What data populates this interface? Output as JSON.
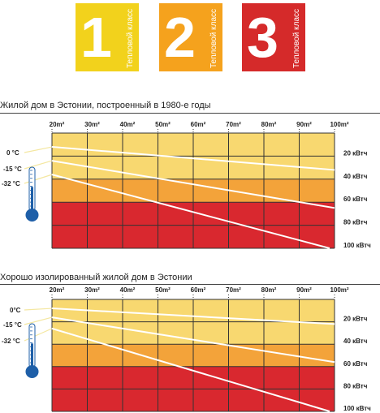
{
  "classes": [
    {
      "number": "1",
      "label": "Тепловой класс",
      "color": "#f2d21c"
    },
    {
      "number": "2",
      "label": "Тепловой класс",
      "color": "#f5a21d"
    },
    {
      "number": "3",
      "label": "Тепловой класс",
      "color": "#d52a2a"
    }
  ],
  "charts": [
    {
      "title": "Жилой дом в Эстонии, построенный в 1980-е годы",
      "chart_data": {
        "type": "diagram",
        "areas": [
          "20m²",
          "30m²",
          "40m²",
          "50m²",
          "60m²",
          "70m²",
          "80m²",
          "90m²",
          "100m²"
        ],
        "temperatures": [
          "0 °C",
          "-15 °C",
          "-32 °C"
        ],
        "heat_levels": [
          "20 кВтч",
          "40 кВтч",
          "60 кВтч",
          "80 кВтч",
          "100 кВтч"
        ],
        "zones": [
          {
            "class": "1",
            "color": "#f8d870",
            "from_kwh": 0,
            "to_kwh": 40
          },
          {
            "class": "2",
            "color": "#f3a33a",
            "from_kwh": 40,
            "to_kwh": 60
          },
          {
            "class": "3",
            "color": "#d9282f",
            "from_kwh": 60,
            "to_kwh": 100
          }
        ],
        "lines": [
          {
            "temperature": "0 °C",
            "start_kwh": 12,
            "end_kwh": 32
          },
          {
            "temperature": "-15 °C",
            "start_kwh": 24,
            "end_kwh": 65
          },
          {
            "temperature": "-32 °C",
            "start_kwh": 36,
            "end_kwh": 100
          }
        ]
      }
    },
    {
      "title": "Хорошо изолированный жилой дом в Эстонии",
      "chart_data": {
        "type": "diagram",
        "areas": [
          "20m²",
          "30m²",
          "40m²",
          "50m²",
          "60m²",
          "70m²",
          "80m²",
          "90m²",
          "100m²"
        ],
        "temperatures": [
          "0°C",
          "-15 °C",
          "-32 °C"
        ],
        "heat_levels": [
          "20 кВтч",
          "40 кВтч",
          "60 кВтч",
          "80 кВтч",
          "100 кВтч"
        ],
        "zones": [
          {
            "class": "1",
            "color": "#f8d870",
            "from_kwh": 0,
            "to_kwh": 40
          },
          {
            "class": "2",
            "color": "#f3a33a",
            "from_kwh": 40,
            "to_kwh": 60
          },
          {
            "class": "3",
            "color": "#d9282f",
            "from_kwh": 60,
            "to_kwh": 100
          }
        ],
        "lines": [
          {
            "temperature": "0°C",
            "start_kwh": 8,
            "end_kwh": 22
          },
          {
            "temperature": "-15 °C",
            "start_kwh": 16,
            "end_kwh": 56
          },
          {
            "temperature": "-32 °C",
            "start_kwh": 26,
            "end_kwh": 100
          }
        ]
      }
    }
  ]
}
